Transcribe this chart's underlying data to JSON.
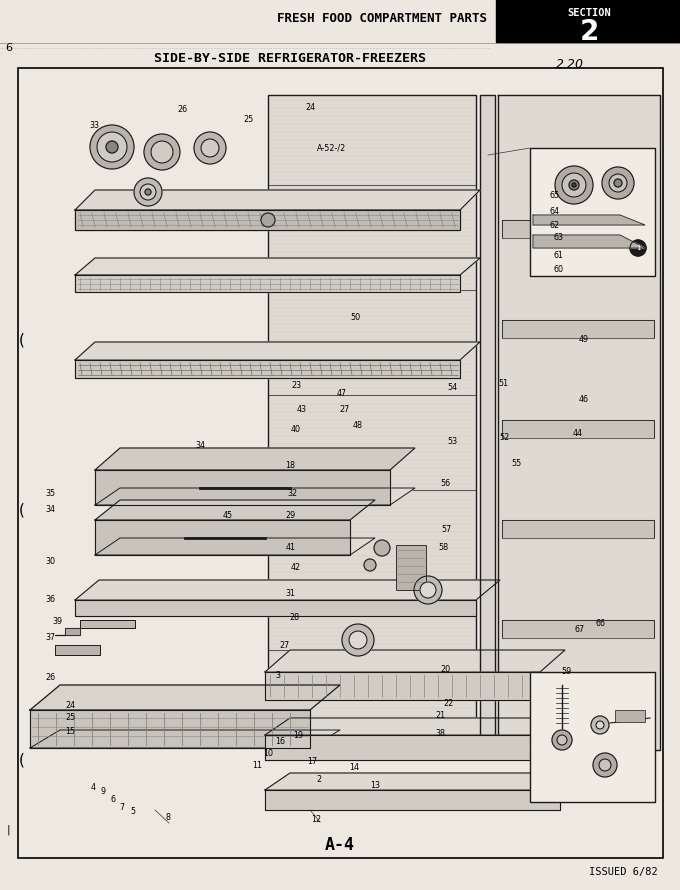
{
  "title_top": "FRESH FOOD COMPARTMENT PARTS",
  "section_label": "SECTION",
  "section_number": "2",
  "subtitle": "SIDE-BY-SIDE REFRIGERATOR-FREEZERS",
  "page_ref": "2.20",
  "bottom_label": "A-4",
  "issued": "ISSUED 6/82",
  "bg_color": "#e8e4dc",
  "paper_color": "#ece8e0",
  "diagram_bg": "#f0ece4",
  "line_color": "#1a1a1a",
  "part_labels": [
    [
      168,
      817,
      "8"
    ],
    [
      133,
      812,
      "5"
    ],
    [
      122,
      807,
      "7"
    ],
    [
      113,
      800,
      "6"
    ],
    [
      103,
      792,
      "9"
    ],
    [
      93,
      788,
      "4"
    ],
    [
      316,
      820,
      "12"
    ],
    [
      319,
      780,
      "2"
    ],
    [
      312,
      762,
      "17"
    ],
    [
      354,
      768,
      "14"
    ],
    [
      375,
      785,
      "13"
    ],
    [
      257,
      766,
      "11"
    ],
    [
      268,
      754,
      "10"
    ],
    [
      280,
      742,
      "16"
    ],
    [
      70,
      732,
      "15"
    ],
    [
      70,
      718,
      "25"
    ],
    [
      70,
      706,
      "24"
    ],
    [
      50,
      678,
      "26"
    ],
    [
      50,
      638,
      "37"
    ],
    [
      57,
      622,
      "39"
    ],
    [
      50,
      600,
      "36"
    ],
    [
      50,
      562,
      "30"
    ],
    [
      50,
      510,
      "34"
    ],
    [
      50,
      493,
      "35"
    ],
    [
      278,
      676,
      "3"
    ],
    [
      284,
      645,
      "27"
    ],
    [
      294,
      618,
      "28"
    ],
    [
      290,
      593,
      "31"
    ],
    [
      296,
      568,
      "42"
    ],
    [
      291,
      548,
      "41"
    ],
    [
      290,
      516,
      "29"
    ],
    [
      292,
      494,
      "32"
    ],
    [
      290,
      466,
      "18"
    ],
    [
      296,
      430,
      "40"
    ],
    [
      302,
      410,
      "43"
    ],
    [
      296,
      385,
      "23"
    ],
    [
      228,
      516,
      "45"
    ],
    [
      200,
      445,
      "34"
    ],
    [
      298,
      735,
      "19"
    ],
    [
      440,
      734,
      "38"
    ],
    [
      440,
      716,
      "21"
    ],
    [
      448,
      703,
      "22"
    ],
    [
      445,
      670,
      "20"
    ],
    [
      443,
      548,
      "58"
    ],
    [
      446,
      530,
      "57"
    ],
    [
      445,
      484,
      "56"
    ],
    [
      452,
      442,
      "53"
    ],
    [
      505,
      437,
      "52"
    ],
    [
      452,
      388,
      "54"
    ],
    [
      503,
      384,
      "51"
    ],
    [
      517,
      464,
      "55"
    ],
    [
      567,
      672,
      "59"
    ],
    [
      580,
      630,
      "67"
    ],
    [
      600,
      624,
      "66"
    ],
    [
      578,
      434,
      "44"
    ],
    [
      584,
      400,
      "46"
    ],
    [
      584,
      340,
      "49"
    ],
    [
      358,
      426,
      "48"
    ],
    [
      345,
      410,
      "27"
    ],
    [
      342,
      394,
      "47"
    ],
    [
      355,
      318,
      "50"
    ],
    [
      248,
      120,
      "25"
    ],
    [
      94,
      125,
      "33"
    ],
    [
      182,
      110,
      "26"
    ],
    [
      310,
      108,
      "24"
    ],
    [
      555,
      195,
      "65"
    ],
    [
      555,
      212,
      "64"
    ],
    [
      555,
      225,
      "62"
    ],
    [
      558,
      238,
      "63"
    ],
    [
      558,
      255,
      "61"
    ],
    [
      558,
      270,
      "60"
    ],
    [
      332,
      148,
      "A-52-/2"
    ]
  ]
}
